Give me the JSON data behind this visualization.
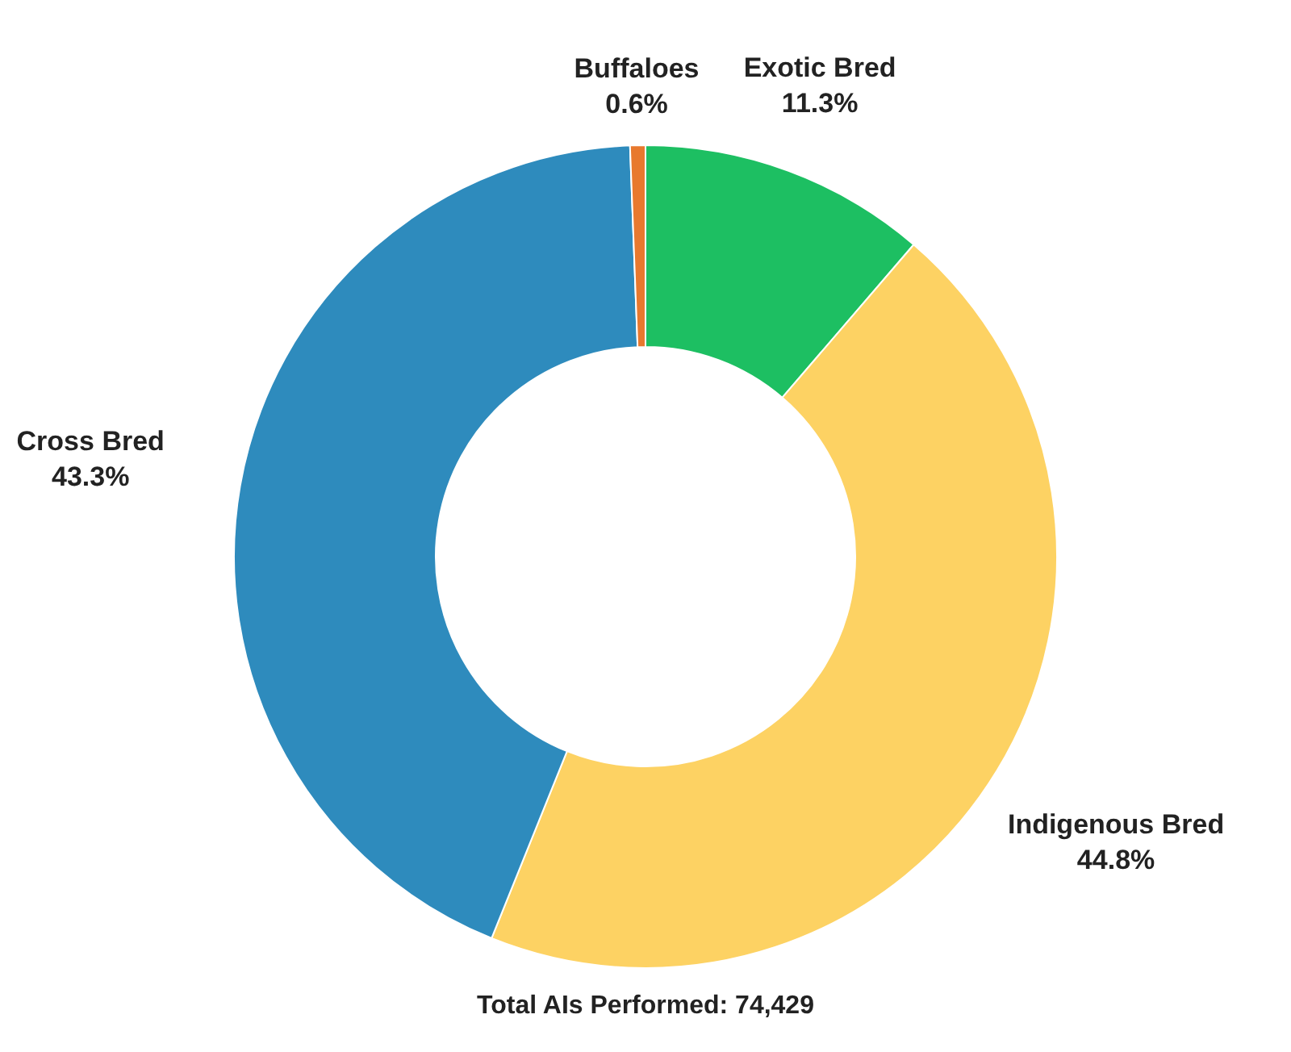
{
  "chart_data": {
    "type": "donut",
    "categories": [
      "Exotic Bred",
      "Indigenous Bred",
      "Cross Bred",
      "Buffaloes"
    ],
    "values": [
      11.3,
      44.8,
      43.3,
      0.6
    ],
    "colors": [
      "#1dbf62",
      "#fdd263",
      "#2e8bbd",
      "#e8792e"
    ],
    "value_labels": [
      "11.3%",
      "44.8%",
      "43.3%",
      "0.6%"
    ],
    "annotations": [
      "Total AIs Performed: 74,429"
    ]
  }
}
